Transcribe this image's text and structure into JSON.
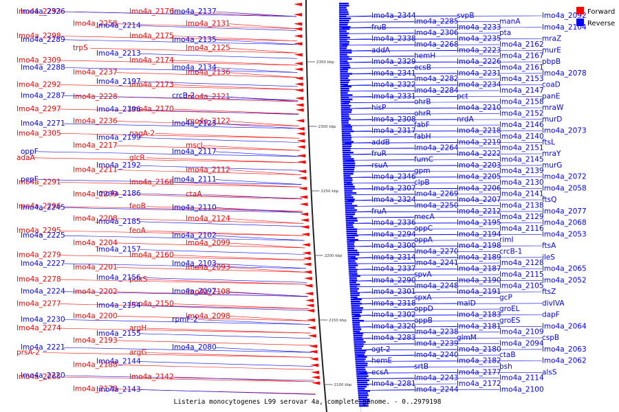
{
  "caption": "Listeria monocytogenes L99 serovar 4a, complete genome. - 0..2979198",
  "legend": [
    {
      "label": "Forward",
      "color": "#ff0000"
    },
    {
      "label": "Reverse",
      "color": "#0000ff"
    }
  ],
  "ticks": [
    "2350 kbp",
    "2300 kbp",
    "2250 kbp",
    "2200 kbp",
    "2150 kbp",
    "2100 kbp"
  ],
  "forward_labels": [
    "lmo4a_2293",
    "lmo4a_2298",
    "lmo4a_2309",
    "lmo4a_2292",
    "lmo4a_2297",
    "lmo4a_2305",
    "adaA",
    "lmo4a_2291",
    "lmo4a_2296",
    "lmo4a_2295",
    "lmo4a_2279",
    "lmo4a_2278",
    "lmo4a_2277",
    "lmo4a_2274",
    "prsA-2",
    "lmo4a_2265",
    "lmo4a_2258",
    "trpS",
    "lmo4a_2237",
    "lmo4a_2228",
    "lmo4a_2236",
    "lmo4a_2217",
    "lmo4a_2211",
    "lmo4a_2209",
    "lmo4a_2208",
    "lmo4a_2204",
    "lmo4a_2201",
    "lmo4a_2202",
    "lmo4a_2200",
    "lmo4a_2193",
    "lmo4a_2188",
    "lmo4a_2178",
    "lmo4a_2176",
    "lmo4a_2175",
    "lmo4a_2174",
    "lmo4a_2173",
    "lmo4a_2170",
    "nagA-2",
    "glcR",
    "lmo4a_2166",
    "feoB",
    "feoA",
    "lmo4a_2160",
    "pdxS",
    "lmo4a_2150",
    "argH",
    "argG",
    "lmo4a_2142",
    "lmo4a_2131",
    "lmo4a_2125",
    "lmo4a_2136",
    "lmo4a_2121",
    "lmo4a_2122",
    "mscL",
    "lmo4a_2112",
    "ctaA",
    "lmo4a_2124",
    "lmo4a_2099",
    "lmo4a_2093",
    "lmo4a_2108",
    "lmo4a_2098"
  ],
  "reverse_labels_left": [
    "lmo4a_2326",
    "lmo4a_2289",
    "lmo4a_2288",
    "lmo4a_2287",
    "lmo4a_2271",
    "oppF",
    "pepF",
    "lmo4a_2245",
    "lmo4a_2225",
    "lmo4a_2227",
    "lmo4a_2224",
    "lmo4a_2230",
    "lmo4a_2221",
    "lmo4a_2220",
    "lmo4a_2214",
    "lmo4a_2213",
    "lmo4a_2197",
    "lmo4a_2196",
    "lmo4a_2199",
    "lmo4a_2192",
    "lmo4a_2186",
    "lmo4a_2185",
    "lmo4a_2157",
    "lmo4a_2156",
    "lmo4a_2154",
    "lmo4a_2155",
    "lmo4a_2144",
    "lmo4a_2143",
    "lmo4a_2137",
    "lmo4a_2135",
    "lmo4a_2134",
    "crcB-2",
    "lmo4a_2123",
    "lmo4a_2117",
    "lmo4a_2111",
    "lmo4a_2110",
    "lmo4a_2102",
    "lmo4a_2103",
    "lmo4a_2097",
    "rpmF-2",
    "lmo4a_2080"
  ],
  "reverse_labels_right": [
    "lmo4a_2344",
    "fruB",
    "lmo4a_2338",
    "addA",
    "lmo4a_2329",
    "lmo4a_2341",
    "lmo4a_2322",
    "lmo4a_2331",
    "hisP",
    "lmo4a_2308",
    "lmo4a_2317",
    "addB",
    "fruR",
    "rsuA",
    "lmo4a_2346",
    "lmo4a_2307",
    "lmo4a_2324",
    "fruA",
    "lmo4a_2336",
    "lmo4a_2294",
    "lmo4a_2300",
    "lmo4a_2314",
    "lmo4a_2337",
    "lmo4a_2290",
    "lmo4a_2301",
    "lmo4a_2318",
    "lmo4a_2302",
    "lmo4a_2320",
    "lmo4a_2283",
    "ogt-2",
    "hemE",
    "ecsA",
    "lmo4a_2281",
    "lmo4a_2285",
    "lmo4a_2306",
    "lmo4a_2268",
    "hemH",
    "ecsB",
    "lmo4a_2282",
    "lmo4a_2284",
    "ohrB",
    "ohrR",
    "fabF",
    "fabH",
    "lmo4a_2264",
    "fumC",
    "gpm",
    "clpB",
    "lmo4a_2269",
    "lmo4a_2250",
    "mecA",
    "oppC",
    "oppA",
    "lmo4a_2270",
    "lmo4a_2241",
    "spvA",
    "lmo4a_2248",
    "spxA",
    "oppD",
    "oppB",
    "lmo4a_2238",
    "lmo4a_2239",
    "lmo4a_2240",
    "srtB",
    "lmo4a_2243",
    "lmo4a_2244",
    "svpB",
    "lmo4a_2233",
    "lmo4a_2235",
    "lmo4a_2223",
    "lmo4a_2226",
    "lmo4a_2231",
    "lmo4a_2234",
    "pct",
    "lmo4a_2210",
    "nrdA",
    "lmo4a_2218",
    "lmo4a_2219",
    "lmo4a_2222",
    "lmo4a_2203",
    "lmo4a_2205",
    "lmo4a_2206",
    "lmo4a_2207",
    "lmo4a_2212",
    "lmo4a_2195",
    "lmo4a_2194",
    "lmo4a_2198",
    "lmo4a_2189",
    "lmo4a_2187",
    "lmo4a_2190",
    "lmo4a_2191",
    "malD",
    "lmo4a_2183",
    "lmo4a_2181",
    "glmM",
    "lmo4a_2180",
    "lmo4a_2182",
    "lmo4a_2177",
    "lmo4a_2172",
    "manA",
    "pta",
    "lmo4a_2162",
    "lmo4a_2167",
    "lmo4a_2161",
    "lmo4a_2153",
    "lmo4a_2147",
    "lmo4a_2158",
    "lmo4a_2152",
    "lmo4a_2146",
    "lmo4a_2140",
    "lmo4a_2151",
    "lmo4a_2145",
    "lmo4a_2139",
    "lmo4a_2130",
    "lmo4a_2141",
    "lmo4a_2138",
    "lmo4a_2129",
    "lmo4a_2116",
    "rimI",
    "crcB-1",
    "lmo4a_2128",
    "lmo4a_2115",
    "lmo4a_2105",
    "gcP",
    "groEL",
    "groES",
    "lmo4a_2109",
    "lmo4a_2094",
    "ctaB",
    "bsh",
    "lmo4a_2114",
    "lmo4a_2100",
    "lmo4a_2092",
    "lmo4a_2104",
    "mraZ",
    "murE",
    "pbpB",
    "lmo4a_2078",
    "coaD",
    "panE",
    "mraW",
    "murD",
    "lmo4a_2073",
    "ftsL",
    "mraY",
    "murG",
    "lmo4a_2072",
    "lmo4a_2058",
    "ftsQ",
    "lmo4a_2077",
    "lmo4a_2068",
    "lmo4a_2053",
    "ftsA",
    "ileS",
    "lmo4a_2065",
    "lmo4a_2052",
    "ftsZ",
    "divIVA",
    "dapF",
    "lmo4a_2064",
    "cspB",
    "lmo4a_2063",
    "lmo4a_2062",
    "alsS"
  ]
}
